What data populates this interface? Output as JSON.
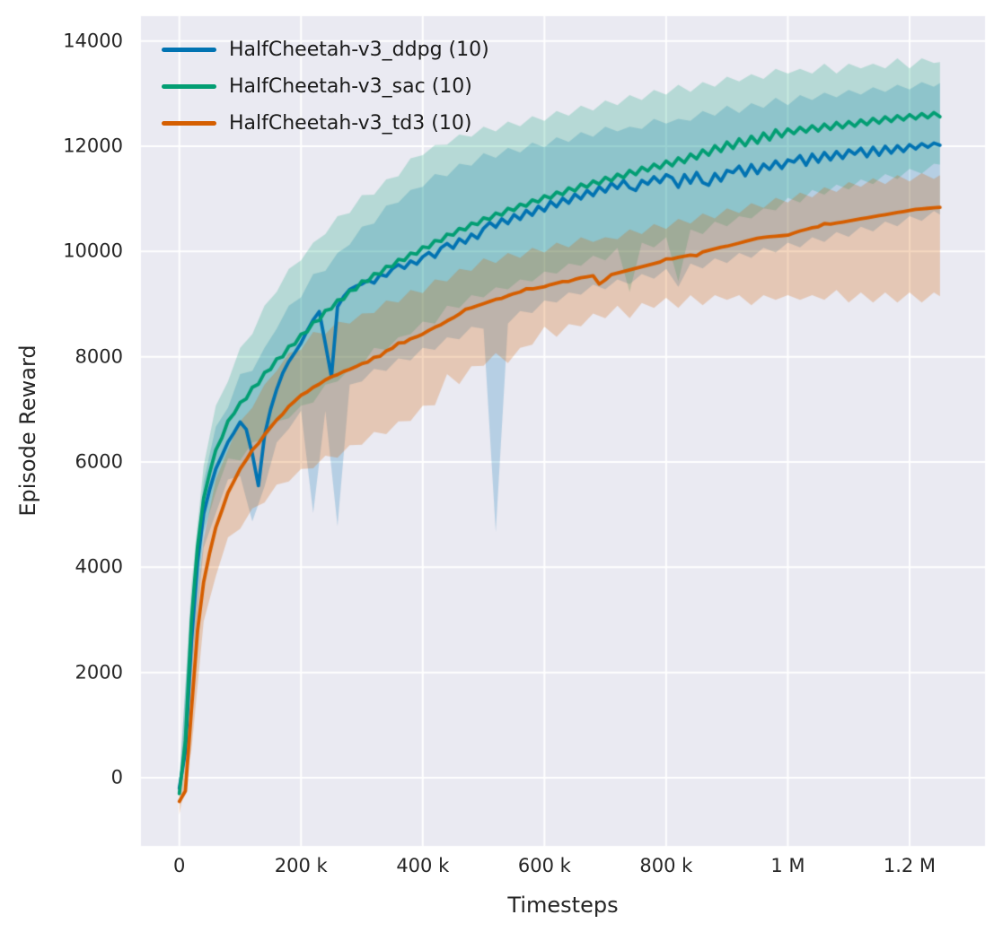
{
  "figure": {
    "background": "#ffffff",
    "plot_background": "#eaeaf2",
    "grid_color": "#ffffff",
    "text_color": "#262626"
  },
  "chart_data": {
    "type": "line",
    "title": "",
    "xlabel": "Timesteps",
    "ylabel": "Episode Reward",
    "grid": true,
    "legend_position": "upper left",
    "xlim": [
      -63000,
      1324000
    ],
    "ylim": [
      -1295,
      14472
    ],
    "xticks": {
      "values": [
        0,
        200000,
        400000,
        600000,
        800000,
        1000000,
        1200000
      ],
      "labels": [
        "0",
        "200 k",
        "400 k",
        "600 k",
        "800 k",
        "1 M",
        "1.2 M"
      ]
    },
    "yticks": {
      "values": [
        0,
        2000,
        4000,
        6000,
        8000,
        10000,
        12000,
        14000
      ],
      "labels": [
        "0",
        "2000",
        "4000",
        "6000",
        "8000",
        "10000",
        "12000",
        "14000"
      ]
    },
    "series": [
      {
        "name": "HalfCheetah-v3_ddpg (10)",
        "color": "#0173b2",
        "band_alpha": 0.22,
        "x_start": 0,
        "x_step": 10000,
        "x_end": 1250000,
        "mean": [
          -200,
          500,
          2600,
          4100,
          5020,
          5480,
          5870,
          6120,
          6380,
          6560,
          6760,
          6620,
          6150,
          5550,
          6500,
          7000,
          7380,
          7690,
          7910,
          8080,
          8260,
          8490,
          8700,
          8860,
          8250,
          7620,
          8950,
          9140,
          9280,
          9340,
          9380,
          9450,
          9400,
          9560,
          9530,
          9670,
          9750,
          9680,
          9820,
          9760,
          9900,
          9980,
          9890,
          10070,
          10150,
          10060,
          10240,
          10160,
          10330,
          10250,
          10440,
          10550,
          10460,
          10620,
          10530,
          10700,
          10610,
          10780,
          10690,
          10860,
          10770,
          10950,
          10850,
          11010,
          10920,
          11090,
          11000,
          11160,
          11060,
          11230,
          11130,
          11300,
          11200,
          11350,
          11210,
          11160,
          11350,
          11280,
          11420,
          11310,
          11460,
          11400,
          11220,
          11460,
          11300,
          11500,
          11310,
          11260,
          11480,
          11340,
          11540,
          11500,
          11620,
          11440,
          11650,
          11480,
          11660,
          11560,
          11720,
          11580,
          11740,
          11700,
          11820,
          11640,
          11850,
          11700,
          11880,
          11740,
          11900,
          11770,
          11930,
          11850,
          11960,
          11800,
          11980,
          11830,
          12000,
          11870,
          12010,
          11900,
          12030,
          11950,
          12050,
          11980,
          12060,
          12020
        ],
        "band_x_step": 20000,
        "band_lo": [
          -350,
          2000,
          4300,
          5100,
          5600,
          5800,
          4800,
          5600,
          6300,
          6700,
          6900,
          5100,
          6900,
          4850,
          7400,
          7600,
          7700,
          7800,
          7900,
          8000,
          8100,
          8200,
          8300,
          8400,
          8500,
          8600,
          4600,
          8700,
          8800,
          8900,
          9000,
          9100,
          9150,
          9250,
          9300,
          9350,
          9400,
          9450,
          9500,
          9550,
          9600,
          9400,
          9700,
          9750,
          9800,
          9850,
          9900,
          9950,
          10000,
          10050,
          10100,
          10150,
          10200,
          10250,
          10300,
          10350,
          10400,
          10450,
          10500,
          10550,
          10600,
          10650,
          10700,
          10700
        ],
        "band_hi": [
          0,
          3300,
          5700,
          6600,
          7100,
          7600,
          7800,
          8100,
          8600,
          8900,
          9200,
          9500,
          9700,
          9900,
          10200,
          10400,
          10600,
          10800,
          11000,
          11100,
          11300,
          11400,
          11500,
          11600,
          11700,
          11800,
          11850,
          11900,
          11950,
          12000,
          12050,
          12100,
          12150,
          12200,
          12250,
          12300,
          12350,
          12300,
          12400,
          12450,
          12500,
          12450,
          12550,
          12600,
          12650,
          12700,
          12700,
          12750,
          12800,
          12850,
          12850,
          12900,
          12950,
          12950,
          13000,
          13000,
          13050,
          13050,
          13100,
          13100,
          13150,
          13150,
          13200,
          13200
        ]
      },
      {
        "name": "HalfCheetah-v3_sac (10)",
        "color": "#029e73",
        "band_alpha": 0.22,
        "x_start": 0,
        "x_step": 10000,
        "x_end": 1250000,
        "mean": [
          -300,
          700,
          3000,
          4400,
          5310,
          5800,
          6230,
          6460,
          6780,
          6920,
          7130,
          7200,
          7420,
          7480,
          7700,
          7760,
          7960,
          8000,
          8200,
          8240,
          8430,
          8470,
          8660,
          8690,
          8880,
          8910,
          9080,
          9090,
          9260,
          9270,
          9440,
          9430,
          9580,
          9570,
          9720,
          9710,
          9850,
          9830,
          9970,
          9950,
          10090,
          10070,
          10210,
          10190,
          10330,
          10310,
          10440,
          10410,
          10540,
          10510,
          10640,
          10610,
          10730,
          10690,
          10820,
          10780,
          10900,
          10860,
          10980,
          10940,
          11060,
          11010,
          11130,
          11080,
          11210,
          11150,
          11280,
          11220,
          11340,
          11280,
          11410,
          11340,
          11470,
          11400,
          11540,
          11460,
          11600,
          11530,
          11660,
          11580,
          11720,
          11630,
          11780,
          11690,
          11850,
          11760,
          11930,
          11830,
          12010,
          11900,
          12080,
          11960,
          12140,
          12010,
          12190,
          12060,
          12250,
          12120,
          12310,
          12180,
          12330,
          12240,
          12360,
          12270,
          12390,
          12290,
          12420,
          12320,
          12450,
          12350,
          12470,
          12380,
          12500,
          12410,
          12530,
          12440,
          12560,
          12470,
          12580,
          12500,
          12600,
          12520,
          12620,
          12540,
          12640,
          12560
        ],
        "band_x_step": 20000,
        "band_lo": [
          -400,
          2400,
          4600,
          5500,
          6000,
          6100,
          6300,
          6500,
          6700,
          6900,
          7000,
          7200,
          7400,
          7600,
          7700,
          7900,
          8100,
          8200,
          8300,
          8500,
          8600,
          8700,
          8900,
          9000,
          9100,
          9200,
          9250,
          9350,
          9400,
          9500,
          9550,
          9650,
          9700,
          9800,
          9850,
          9900,
          10000,
          9300,
          10100,
          10150,
          10200,
          9500,
          10350,
          10400,
          10500,
          10550,
          10600,
          10700,
          10750,
          10850,
          10950,
          11000,
          11100,
          11150,
          11200,
          11250,
          11300,
          11350,
          11400,
          11450,
          11500,
          11550,
          11600,
          11650
        ],
        "band_hi": [
          -150,
          3600,
          6000,
          7000,
          7600,
          8100,
          8500,
          8900,
          9300,
          9600,
          9900,
          10100,
          10400,
          10600,
          10800,
          11000,
          11150,
          11300,
          11500,
          11700,
          11900,
          11950,
          12100,
          12150,
          12250,
          12300,
          12350,
          12400,
          12450,
          12500,
          12550,
          12600,
          12650,
          12700,
          12750,
          12800,
          12850,
          12900,
          12950,
          13000,
          13050,
          13100,
          13100,
          13150,
          13200,
          13250,
          13300,
          13300,
          13350,
          13400,
          13450,
          13400,
          13450,
          13500,
          13450,
          13500,
          13550,
          13500,
          13550,
          13600,
          13550,
          13600,
          13650,
          13600
        ]
      },
      {
        "name": "HalfCheetah-v3_td3 (10)",
        "color": "#d55e00",
        "band_alpha": 0.25,
        "x_start": 0,
        "x_step": 10000,
        "x_end": 1250000,
        "mean": [
          -450,
          -250,
          1300,
          2800,
          3720,
          4280,
          4760,
          5080,
          5420,
          5640,
          5870,
          6040,
          6230,
          6350,
          6520,
          6660,
          6800,
          6910,
          7060,
          7160,
          7270,
          7330,
          7420,
          7480,
          7560,
          7620,
          7660,
          7720,
          7760,
          7810,
          7870,
          7900,
          7990,
          8010,
          8110,
          8160,
          8260,
          8270,
          8340,
          8380,
          8430,
          8500,
          8560,
          8610,
          8680,
          8740,
          8810,
          8900,
          8930,
          8970,
          9010,
          9050,
          9090,
          9110,
          9160,
          9200,
          9230,
          9290,
          9290,
          9310,
          9330,
          9370,
          9400,
          9430,
          9430,
          9470,
          9500,
          9520,
          9540,
          9380,
          9460,
          9560,
          9590,
          9620,
          9650,
          9680,
          9710,
          9740,
          9770,
          9800,
          9860,
          9860,
          9890,
          9910,
          9930,
          9920,
          9990,
          10020,
          10050,
          10080,
          10100,
          10130,
          10160,
          10190,
          10220,
          10250,
          10270,
          10280,
          10290,
          10300,
          10310,
          10350,
          10390,
          10420,
          10450,
          10470,
          10530,
          10520,
          10540,
          10560,
          10580,
          10600,
          10620,
          10640,
          10660,
          10680,
          10700,
          10720,
          10740,
          10760,
          10780,
          10800,
          10810,
          10820,
          10830,
          10840
        ],
        "band_x_step": 20000,
        "band_lo": [
          -700,
          600,
          2900,
          3900,
          4500,
          4800,
          5050,
          5300,
          5500,
          5700,
          5800,
          5950,
          6050,
          6150,
          6250,
          6400,
          6500,
          6600,
          6700,
          6850,
          7000,
          7150,
          7600,
          7550,
          7750,
          7900,
          8000,
          7950,
          8100,
          8300,
          8500,
          8450,
          8550,
          8650,
          8750,
          8800,
          8900,
          8800,
          8950,
          9000,
          9050,
          9000,
          9100,
          9050,
          9100,
          9150,
          9100,
          9050,
          9100,
          9150,
          9100,
          9150,
          9100,
          9150,
          9200,
          9100,
          9150,
          9100,
          9150,
          9100,
          9150,
          9100,
          9150,
          9150
        ],
        "band_hi": [
          -200,
          2300,
          4600,
          5600,
          6300,
          6700,
          7100,
          7400,
          7800,
          8000,
          8200,
          8400,
          8500,
          8600,
          8700,
          8750,
          8900,
          9000,
          9100,
          9200,
          9280,
          9400,
          9500,
          9600,
          9700,
          9800,
          9850,
          9900,
          9950,
          10000,
          10050,
          10100,
          10150,
          10200,
          10250,
          10200,
          10300,
          10350,
          10400,
          10450,
          10500,
          10550,
          10600,
          10650,
          10700,
          10750,
          10800,
          10850,
          10900,
          10950,
          11000,
          11050,
          11100,
          11150,
          11200,
          11250,
          11300,
          11320,
          11350,
          11380,
          11400,
          11420,
          11450,
          11450
        ]
      }
    ]
  }
}
